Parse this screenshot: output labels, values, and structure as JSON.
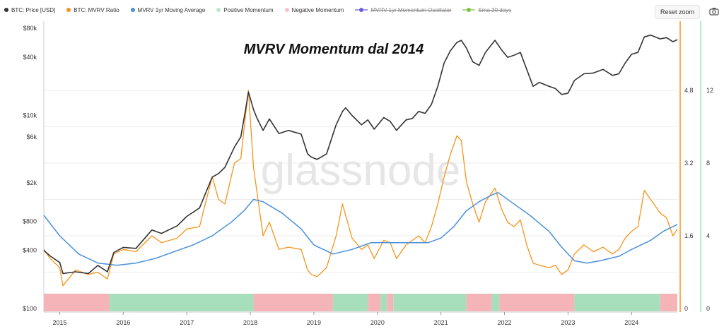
{
  "legend": [
    {
      "label": "BTC: Price [USD]",
      "color": "#333333",
      "marker": "dot"
    },
    {
      "label": "BTC: MVRV Ratio",
      "color": "#f7931a",
      "marker": "dot"
    },
    {
      "label": "MVRV 1yr Moving Average",
      "color": "#4a90d9",
      "marker": "dot"
    },
    {
      "label": "Positive Momentum",
      "color": "#b9e6c9",
      "marker": "dot"
    },
    {
      "label": "Negative Momentum",
      "color": "#f6c2c6",
      "marker": "dot"
    },
    {
      "label": "MVRV 1yr Momentum Oscillator",
      "color": "#6b5fd9",
      "marker": "line-dot",
      "hidden": true
    },
    {
      "label": "Sma 30 days",
      "color": "#7fc241",
      "marker": "line-dot",
      "hidden": true
    }
  ],
  "controls": {
    "reset_zoom": "Reset zoom",
    "camera_icon": "camera-icon"
  },
  "watermark": "glassnode",
  "colors": {
    "price": "#333333",
    "mvrv": "#f7931a",
    "ma": "#4a90d9",
    "positive": "#a7dfbd",
    "negative": "#f5b4b8"
  },
  "chart_data": {
    "type": "line",
    "title": "MVRV Momentum dal 2014",
    "x_ticks": [
      "2015",
      "2016",
      "2017",
      "2018",
      "2019",
      "2020",
      "2021",
      "2022",
      "2023",
      "2024"
    ],
    "x_range": [
      2014.75,
      2024.72
    ],
    "y_price": {
      "scale": "log",
      "ticks": [
        "$100",
        "$400",
        "$800",
        "$2k",
        "$6k",
        "$10k",
        "$40k",
        "$80k"
      ],
      "tick_values": [
        100,
        400,
        800,
        2000,
        6000,
        10000,
        40000,
        80000
      ]
    },
    "y_mvrv": {
      "ticks": [
        "0",
        "1.6",
        "3.2",
        "4.8"
      ],
      "tick_values": [
        0,
        1.6,
        3.2,
        4.8
      ]
    },
    "y_osc": {
      "ticks": [
        "0",
        "4",
        "8",
        "12"
      ],
      "tick_values": [
        0,
        4,
        8,
        12
      ]
    },
    "series": [
      {
        "name": "BTC: Price [USD]",
        "axis": "price",
        "x": [
          2014.75,
          2014.85,
          2015.0,
          2015.05,
          2015.25,
          2015.45,
          2015.6,
          2015.75,
          2015.85,
          2016.0,
          2016.2,
          2016.45,
          2016.6,
          2016.85,
          2017.0,
          2017.2,
          2017.4,
          2017.5,
          2017.6,
          2017.75,
          2017.85,
          2017.92,
          2017.97,
          2018.05,
          2018.1,
          2018.2,
          2018.3,
          2018.45,
          2018.6,
          2018.8,
          2018.9,
          2018.96,
          2019.05,
          2019.2,
          2019.35,
          2019.45,
          2019.5,
          2019.6,
          2019.75,
          2019.85,
          2019.95,
          2020.1,
          2020.2,
          2020.3,
          2020.45,
          2020.55,
          2020.65,
          2020.75,
          2020.85,
          2020.95,
          2021.05,
          2021.15,
          2021.25,
          2021.32,
          2021.4,
          2021.5,
          2021.6,
          2021.7,
          2021.85,
          2021.95,
          2022.05,
          2022.15,
          2022.25,
          2022.35,
          2022.45,
          2022.55,
          2022.7,
          2022.8,
          2022.9,
          2023.0,
          2023.1,
          2023.25,
          2023.4,
          2023.55,
          2023.7,
          2023.8,
          2023.9,
          2024.0,
          2024.1,
          2024.2,
          2024.3,
          2024.45,
          2024.55,
          2024.65,
          2024.72
        ],
        "y": [
          400,
          350,
          300,
          230,
          240,
          230,
          280,
          240,
          380,
          430,
          420,
          650,
          600,
          720,
          900,
          1100,
          2300,
          2500,
          2900,
          4700,
          6000,
          11000,
          17500,
          11500,
          9500,
          7000,
          9200,
          6500,
          7000,
          6400,
          4000,
          3700,
          3500,
          4000,
          8000,
          11000,
          12000,
          10000,
          8000,
          9000,
          7200,
          9500,
          8700,
          7000,
          9000,
          9300,
          11000,
          10500,
          13000,
          20000,
          35000,
          47000,
          57000,
          60000,
          50000,
          36000,
          33000,
          45000,
          60000,
          48000,
          40000,
          42000,
          45000,
          30000,
          20000,
          22000,
          20000,
          19000,
          16500,
          17000,
          23000,
          27000,
          27500,
          30000,
          26000,
          27000,
          35000,
          43000,
          45000,
          65000,
          68000,
          62000,
          64000,
          58000,
          61000
        ]
      },
      {
        "name": "BTC: MVRV Ratio",
        "axis": "mvrv",
        "x": [
          2014.75,
          2014.85,
          2015.0,
          2015.05,
          2015.25,
          2015.45,
          2015.6,
          2015.75,
          2015.85,
          2016.0,
          2016.2,
          2016.45,
          2016.6,
          2016.85,
          2017.0,
          2017.2,
          2017.4,
          2017.5,
          2017.6,
          2017.75,
          2017.85,
          2017.92,
          2017.97,
          2018.05,
          2018.1,
          2018.2,
          2018.3,
          2018.45,
          2018.6,
          2018.8,
          2018.9,
          2018.96,
          2019.05,
          2019.2,
          2019.35,
          2019.45,
          2019.5,
          2019.6,
          2019.75,
          2019.85,
          2019.95,
          2020.1,
          2020.2,
          2020.3,
          2020.45,
          2020.55,
          2020.65,
          2020.75,
          2020.85,
          2020.95,
          2021.05,
          2021.15,
          2021.25,
          2021.32,
          2021.4,
          2021.5,
          2021.6,
          2021.7,
          2021.85,
          2021.95,
          2022.05,
          2022.15,
          2022.25,
          2022.35,
          2022.45,
          2022.55,
          2022.7,
          2022.8,
          2022.9,
          2023.0,
          2023.1,
          2023.25,
          2023.4,
          2023.55,
          2023.7,
          2023.8,
          2023.9,
          2024.0,
          2024.1,
          2024.2,
          2024.3,
          2024.45,
          2024.55,
          2024.65,
          2024.72
        ],
        "y": [
          1.3,
          1.1,
          0.9,
          0.5,
          0.85,
          0.75,
          0.8,
          0.65,
          1.2,
          1.3,
          1.25,
          1.6,
          1.45,
          1.55,
          1.75,
          1.8,
          2.9,
          2.4,
          2.3,
          3.2,
          3.3,
          4.2,
          4.8,
          3.1,
          2.6,
          1.6,
          1.9,
          1.3,
          1.35,
          1.3,
          0.85,
          0.75,
          0.7,
          0.9,
          1.6,
          2.3,
          2.05,
          1.55,
          1.3,
          1.4,
          1.1,
          1.5,
          1.45,
          1.1,
          1.4,
          1.5,
          1.6,
          1.45,
          1.8,
          2.3,
          2.9,
          3.4,
          3.8,
          3.7,
          2.8,
          2.3,
          1.9,
          2.35,
          2.65,
          2.2,
          1.9,
          1.8,
          1.95,
          1.4,
          1.0,
          0.95,
          0.9,
          0.95,
          0.75,
          0.85,
          1.2,
          1.4,
          1.25,
          1.35,
          1.2,
          1.3,
          1.55,
          1.7,
          1.8,
          2.6,
          2.4,
          2.1,
          2.0,
          1.6,
          1.75
        ]
      },
      {
        "name": "MVRV 1yr Moving Average",
        "axis": "mvrv",
        "x": [
          2014.75,
          2015.0,
          2015.3,
          2015.6,
          2015.9,
          2016.2,
          2016.5,
          2016.8,
          2017.1,
          2017.4,
          2017.7,
          2017.9,
          2018.05,
          2018.2,
          2018.5,
          2018.8,
          2019.0,
          2019.3,
          2019.6,
          2019.9,
          2020.2,
          2020.5,
          2020.8,
          2021.0,
          2021.2,
          2021.4,
          2021.6,
          2021.8,
          2021.9,
          2022.1,
          2022.4,
          2022.7,
          2022.9,
          2023.1,
          2023.3,
          2023.5,
          2023.8,
          2024.0,
          2024.3,
          2024.5,
          2024.72
        ],
        "y": [
          2.05,
          1.6,
          1.2,
          1.0,
          0.95,
          1.0,
          1.1,
          1.25,
          1.4,
          1.6,
          1.9,
          2.15,
          2.4,
          2.35,
          2.1,
          1.75,
          1.4,
          1.2,
          1.3,
          1.45,
          1.45,
          1.45,
          1.45,
          1.55,
          1.8,
          2.15,
          2.35,
          2.5,
          2.55,
          2.35,
          2.05,
          1.7,
          1.35,
          1.05,
          1.0,
          1.05,
          1.15,
          1.3,
          1.5,
          1.7,
          1.85
        ]
      }
    ],
    "momentum_bands": [
      {
        "from": 2014.75,
        "to": 2015.78,
        "sign": "negative"
      },
      {
        "from": 2015.78,
        "to": 2018.05,
        "sign": "positive"
      },
      {
        "from": 2018.05,
        "to": 2019.3,
        "sign": "negative"
      },
      {
        "from": 2019.3,
        "to": 2019.85,
        "sign": "positive"
      },
      {
        "from": 2019.85,
        "to": 2020.05,
        "sign": "negative"
      },
      {
        "from": 2020.05,
        "to": 2020.15,
        "sign": "positive"
      },
      {
        "from": 2020.15,
        "to": 2020.25,
        "sign": "negative"
      },
      {
        "from": 2020.25,
        "to": 2021.4,
        "sign": "positive"
      },
      {
        "from": 2021.4,
        "to": 2021.8,
        "sign": "negative"
      },
      {
        "from": 2021.8,
        "to": 2021.92,
        "sign": "positive"
      },
      {
        "from": 2021.92,
        "to": 2023.1,
        "sign": "negative"
      },
      {
        "from": 2023.1,
        "to": 2024.45,
        "sign": "positive"
      },
      {
        "from": 2024.45,
        "to": 2024.72,
        "sign": "negative"
      }
    ]
  }
}
